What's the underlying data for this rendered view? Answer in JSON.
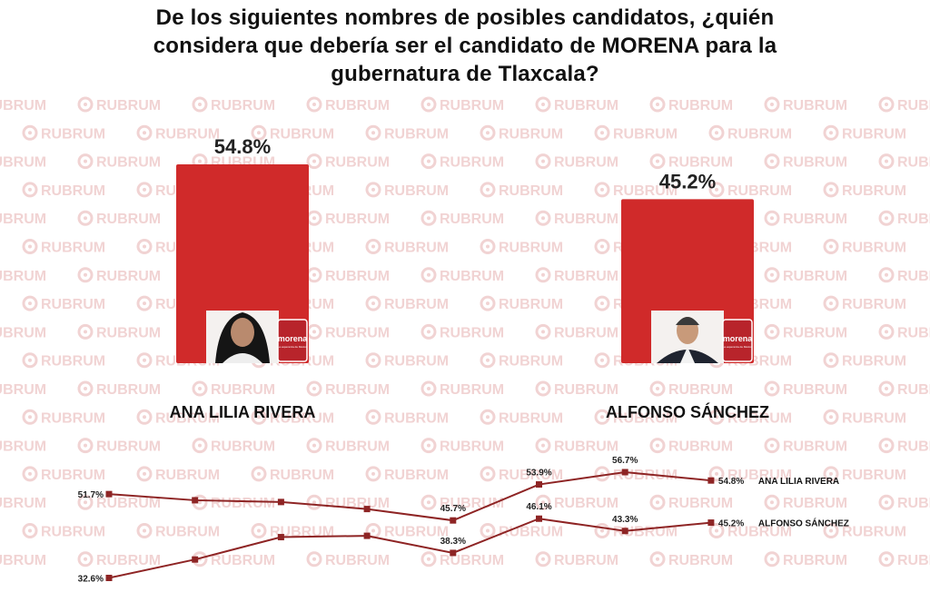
{
  "title_lines": [
    "De los siguientes nombres de posibles candidatos, ¿quién",
    "considera que debería ser el candidato de MORENA para la",
    "gubernatura de Tlaxcala?"
  ],
  "watermark_text": "RUBRUM",
  "party_logo": {
    "name": "morena",
    "tagline": "La esperanza de México"
  },
  "colors": {
    "bar": "#d02a2a",
    "line": "#8e2424",
    "logo_bg": "#b8242b",
    "watermark": "#f1d3d3"
  },
  "chart_data": [
    {
      "type": "bar",
      "categories": [
        "ANA LILIA RIVERA",
        "ALFONSO SÁNCHEZ"
      ],
      "values": [
        54.8,
        45.2
      ],
      "value_labels": [
        "54.8%",
        "45.2%"
      ],
      "unit": "%"
    },
    {
      "type": "line",
      "x": [
        1,
        2,
        3,
        4,
        5,
        6,
        7,
        8
      ],
      "series": [
        {
          "name": "ANA LILIA RIVERA",
          "values": [
            51.7,
            50.3,
            49.9,
            48.3,
            45.7,
            53.9,
            56.7,
            54.8
          ],
          "labels": [
            "51.7%",
            "",
            "",
            "",
            "45.7%",
            "53.9%",
            "56.7%",
            "54.8%"
          ]
        },
        {
          "name": "ALFONSO SÁNCHEZ",
          "values": [
            32.6,
            36.8,
            41.9,
            42.2,
            38.3,
            46.1,
            43.3,
            45.2
          ],
          "labels": [
            "32.6%",
            "",
            "",
            "",
            "38.3%",
            "46.1%",
            "43.3%",
            "45.2%"
          ]
        }
      ]
    }
  ]
}
